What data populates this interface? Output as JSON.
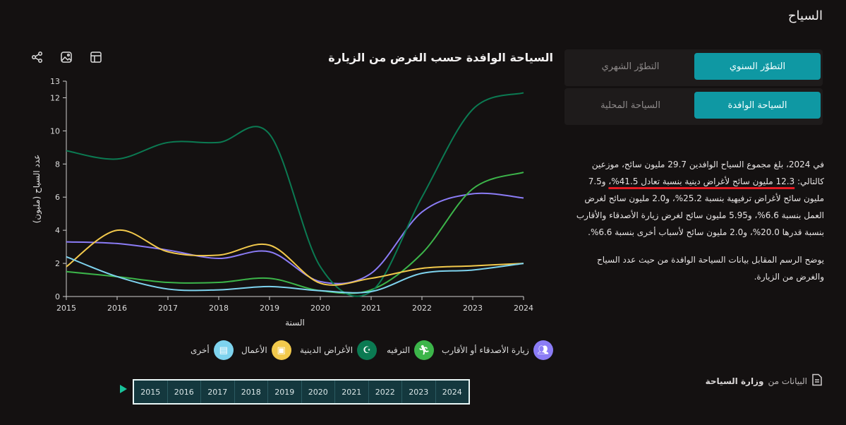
{
  "page": {
    "title": "السياح"
  },
  "chart_header": {
    "title": "السياحة الوافدة حسب الغرض من الزيارة"
  },
  "toolbar": {
    "icons": [
      "share-icon",
      "image-icon",
      "table-icon"
    ]
  },
  "tabs": {
    "row1": {
      "active": "التطوّر السنوي",
      "inactive": "التطوّر الشهري"
    },
    "row2": {
      "active": "السياحة الوافدة",
      "inactive": "السياحة المحلية"
    }
  },
  "description": {
    "p1_a": "في 2024، بلغ مجموع السياح الوافدين 29.7 مليون سائح، موزعين كالتالي:",
    "p1_hl": "12.3 مليون سائح لأغراض دينية بنسبة تعادل 41.5%،",
    "p1_b": " و7.5 مليون سائح لأغراض ترفيهية بنسبة 25.2%، و2.0 مليون سائح لغرض العمل بنسبة 6.6%، و5.95 مليون سائح لغرض زيارة الأصدقاء والأقارب بنسبة قدرها 20.0%، و2.0 مليون سائح لأسباب أخرى بنسبة 6.6%.",
    "p2": "يوضح الرسم المقابل بيانات السياحة الوافدة من حيث عدد السياح والغرض من الزيارة."
  },
  "source": {
    "prefix": "البيانات من",
    "name": "وزارة السياحة"
  },
  "legend": [
    {
      "label": "زيارة الأصدقاء أو الأقارب",
      "color": "#8b7cf6",
      "icon": "people-icon"
    },
    {
      "label": "الترفيه",
      "color": "#3cb54a",
      "icon": "running-person-icon"
    },
    {
      "label": "الأغراض الدينية",
      "color": "#0b7a52",
      "icon": "crescent-icon"
    },
    {
      "label": "الأعمال",
      "color": "#f2c94c",
      "icon": "briefcase-icon"
    },
    {
      "label": "أخرى",
      "color": "#7ed3ee",
      "icon": "book-icon"
    }
  ],
  "timeline": {
    "years": [
      "2015",
      "2016",
      "2017",
      "2018",
      "2019",
      "2020",
      "2021",
      "2022",
      "2023",
      "2024"
    ]
  },
  "chart_data": {
    "type": "line",
    "xlabel": "السنة",
    "ylabel": "عدد السياح (مليون)",
    "x": [
      2015,
      2016,
      2017,
      2018,
      2019,
      2020,
      2021,
      2022,
      2023,
      2024
    ],
    "ylim": [
      0,
      13
    ],
    "yticks": [
      0,
      2,
      4,
      6,
      8,
      10,
      12,
      13
    ],
    "grid": false,
    "legend_position": "bottom",
    "series": [
      {
        "name": "زيارة الأصدقاء أو الأقارب",
        "color": "#8b7cf6",
        "values": [
          3.3,
          3.2,
          2.8,
          2.3,
          2.7,
          0.9,
          1.4,
          5.1,
          6.2,
          5.95
        ]
      },
      {
        "name": "الترفيه",
        "color": "#3cb54a",
        "values": [
          1.5,
          1.2,
          0.85,
          0.85,
          1.1,
          0.35,
          0.4,
          2.6,
          6.5,
          7.5
        ]
      },
      {
        "name": "الأغراض الدينية",
        "color": "#0b7a52",
        "values": [
          8.8,
          8.3,
          9.3,
          9.3,
          9.8,
          1.8,
          0.3,
          6.0,
          11.3,
          12.3
        ]
      },
      {
        "name": "الأعمال",
        "color": "#f2c94c",
        "values": [
          1.8,
          4.0,
          2.7,
          2.5,
          3.1,
          0.8,
          1.1,
          1.7,
          1.85,
          2.0
        ]
      },
      {
        "name": "أخرى",
        "color": "#7ed3ee",
        "values": [
          2.4,
          1.2,
          0.45,
          0.4,
          0.6,
          0.35,
          0.3,
          1.4,
          1.6,
          2.0
        ]
      }
    ]
  }
}
